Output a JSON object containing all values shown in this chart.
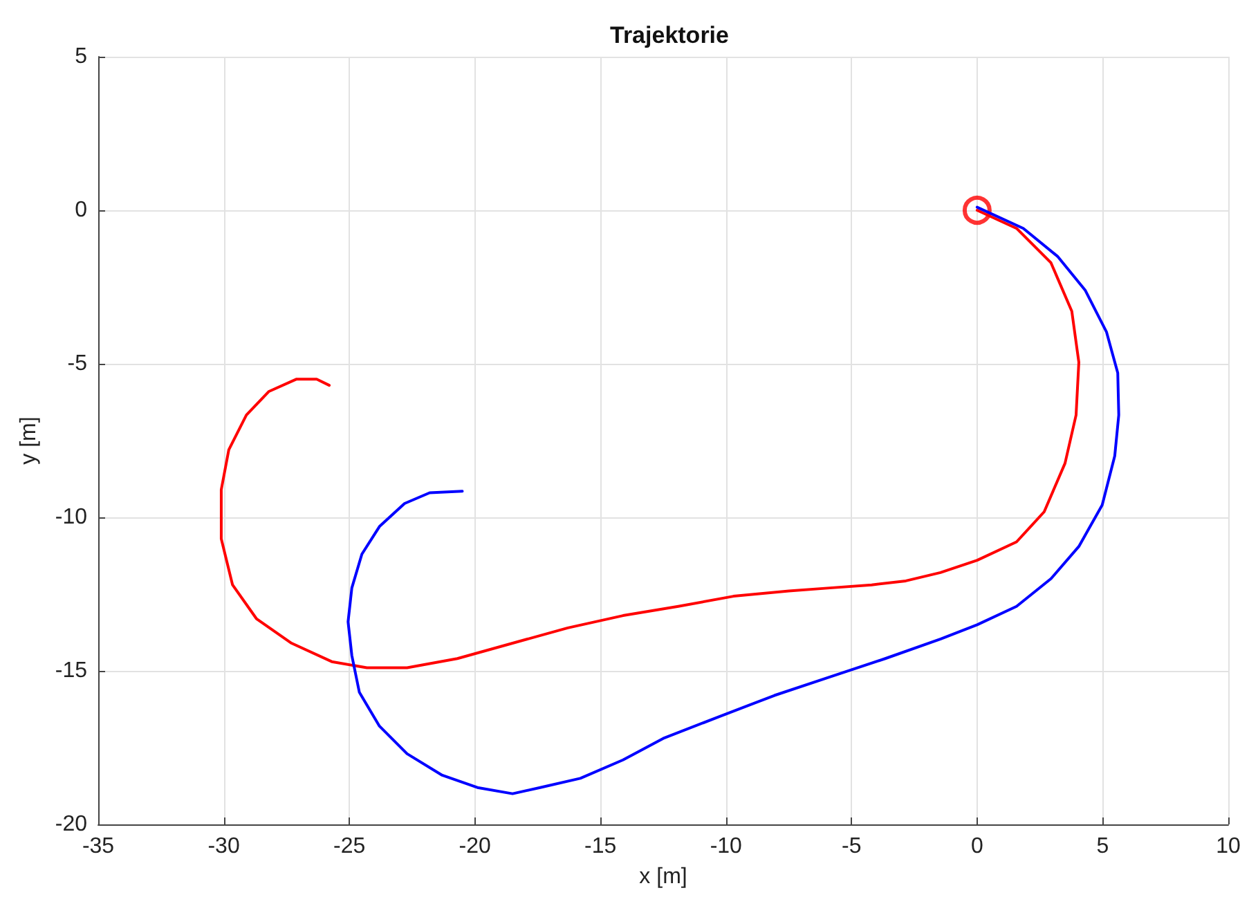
{
  "chart_data": {
    "type": "line",
    "title": "Trajektorie",
    "xlabel": "x [m]",
    "ylabel": "y [m]",
    "xlim": [
      -35,
      10
    ],
    "xticks": [
      -35,
      -30,
      -25,
      -20,
      -15,
      -10,
      -5,
      0,
      5,
      10
    ],
    "ylim": [
      -20,
      5
    ],
    "yticks": [
      -20,
      -15,
      -10,
      -5,
      0,
      5
    ],
    "grid": true,
    "line_style": "solid",
    "marker": "none",
    "series": [
      {
        "color": "#ff0000",
        "x": [
          0,
          1.57,
          2.94,
          3.77,
          4.05,
          3.94,
          3.5,
          2.67,
          1.57,
          0,
          -1.46,
          -2.84,
          -4.2,
          -5.87,
          -7.5,
          -9.7,
          -11.9,
          -14.1,
          -16.3,
          -18.5,
          -20.7,
          -22.7,
          -24.3,
          -25.7,
          -27.3,
          -28.7,
          -29.65,
          -30.1,
          -30.1,
          -29.8,
          -29.1,
          -28.2,
          -27.1,
          -26.3,
          -25.8
        ],
        "values": [
          0,
          -0.59,
          -1.71,
          -3.29,
          -4.95,
          -6.67,
          -8.24,
          -9.82,
          -10.8,
          -11.4,
          -11.8,
          -12.07,
          -12.2,
          -12.3,
          -12.4,
          -12.57,
          -12.9,
          -13.2,
          -13.6,
          -14.1,
          -14.6,
          -14.9,
          -14.9,
          -14.7,
          -14.1,
          -13.3,
          -12.2,
          -10.7,
          -9.1,
          -7.8,
          -6.67,
          -5.9,
          -5.5,
          -5.5,
          -5.7
        ]
      },
      {
        "color": "#0000ff",
        "x": [
          0,
          1.84,
          3.2,
          4.3,
          5.15,
          5.6,
          5.64,
          5.48,
          4.98,
          4.05,
          2.94,
          1.57,
          0,
          -1.45,
          -3.66,
          -5.87,
          -8.07,
          -10.3,
          -12.5,
          -14.1,
          -15.8,
          -17.4,
          -18.5,
          -19.9,
          -21.3,
          -22.7,
          -23.8,
          -24.6,
          -24.9,
          -25.05,
          -24.9,
          -24.5,
          -23.8,
          -22.8,
          -21.8,
          -20.5
        ],
        "values": [
          0.1,
          -0.59,
          -1.5,
          -2.6,
          -3.96,
          -5.3,
          -6.67,
          -8.0,
          -9.6,
          -10.95,
          -12,
          -12.9,
          -13.5,
          -13.96,
          -14.6,
          -15.2,
          -15.8,
          -16.5,
          -17.2,
          -17.9,
          -18.5,
          -18.8,
          -19.0,
          -18.8,
          -18.4,
          -17.7,
          -16.8,
          -15.7,
          -14.5,
          -13.4,
          -12.3,
          -11.2,
          -10.3,
          -9.55,
          -9.2,
          -9.15
        ]
      },
      {
        "type": "scatter",
        "marker": "circle",
        "color": "#ff0000",
        "x": [
          0
        ],
        "values": [
          0
        ]
      }
    ]
  }
}
